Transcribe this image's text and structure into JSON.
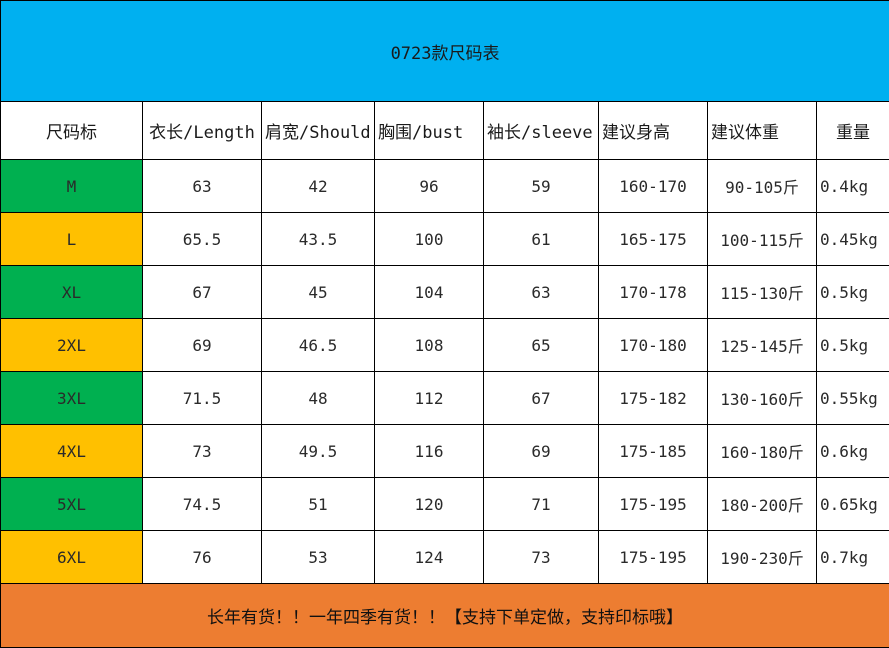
{
  "title": "0723款尺码表",
  "headers": [
    "尺码标",
    "衣长/Length",
    "肩宽/Should",
    "胸围/bust",
    "袖长/sleeve",
    "建议身高",
    "建议体重",
    "重量"
  ],
  "rows": [
    {
      "size": "M",
      "length": "63",
      "shoulder": "42",
      "bust": "96",
      "sleeve": "59",
      "height": "160-170",
      "weight": "90-105斤",
      "mass": "0.4kg"
    },
    {
      "size": "L",
      "length": "65.5",
      "shoulder": "43.5",
      "bust": "100",
      "sleeve": "61",
      "height": "165-175",
      "weight": "100-115斤",
      "mass": "0.45kg"
    },
    {
      "size": "XL",
      "length": "67",
      "shoulder": "45",
      "bust": "104",
      "sleeve": "63",
      "height": "170-178",
      "weight": "115-130斤",
      "mass": "0.5kg"
    },
    {
      "size": "2XL",
      "length": "69",
      "shoulder": "46.5",
      "bust": "108",
      "sleeve": "65",
      "height": "170-180",
      "weight": "125-145斤",
      "mass": "0.5kg"
    },
    {
      "size": "3XL",
      "length": "71.5",
      "shoulder": "48",
      "bust": "112",
      "sleeve": "67",
      "height": "175-182",
      "weight": "130-160斤",
      "mass": "0.55kg"
    },
    {
      "size": "4XL",
      "length": "73",
      "shoulder": "49.5",
      "bust": "116",
      "sleeve": "69",
      "height": "175-185",
      "weight": "160-180斤",
      "mass": "0.6kg"
    },
    {
      "size": "5XL",
      "length": "74.5",
      "shoulder": "51",
      "bust": "120",
      "sleeve": "71",
      "height": "175-195",
      "weight": "180-200斤",
      "mass": "0.65kg"
    },
    {
      "size": "6XL",
      "length": "76",
      "shoulder": "53",
      "bust": "124",
      "sleeve": "73",
      "height": "175-195",
      "weight": "190-230斤",
      "mass": "0.7kg"
    }
  ],
  "footer": "长年有货！！一年四季有货！！【支持下单定做，支持印标哦】",
  "colors": {
    "title_bg": "#00b0f0",
    "size_green": "#00b050",
    "size_yellow": "#ffc000",
    "footer_bg": "#ed7d31"
  }
}
